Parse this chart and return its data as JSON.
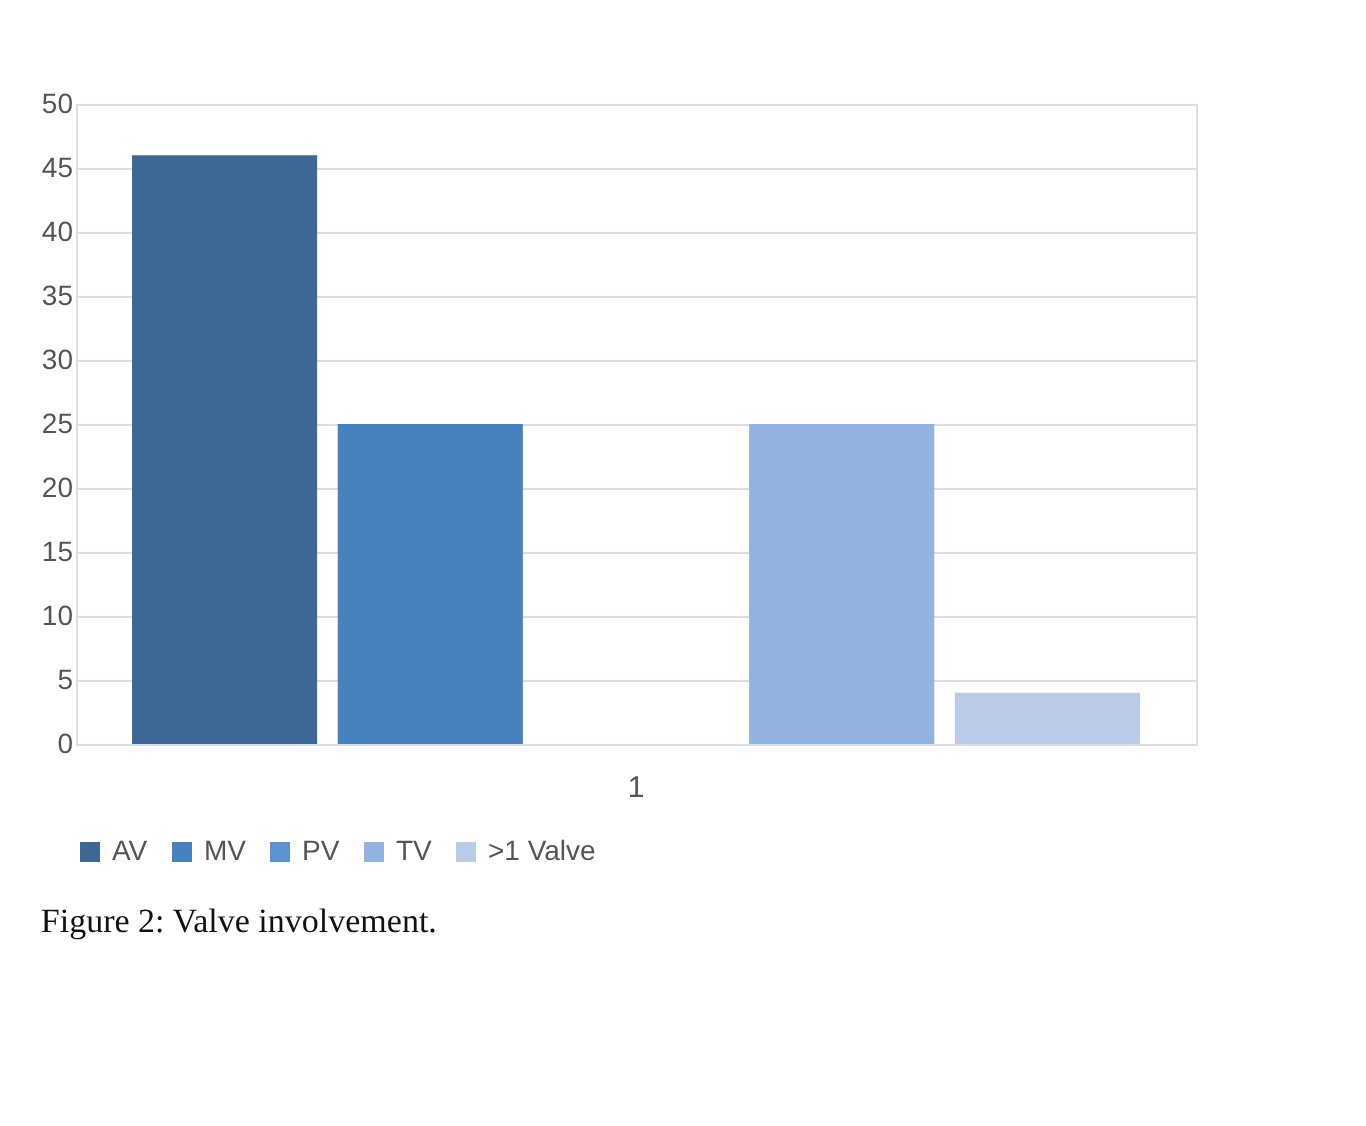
{
  "chart_data": {
    "type": "bar",
    "categories": [
      "1"
    ],
    "series": [
      {
        "name": "AV",
        "color": "#3b6894",
        "values": [
          46
        ]
      },
      {
        "name": "MV",
        "color": "#4683be",
        "values": [
          25
        ]
      },
      {
        "name": "PV",
        "color": "#5b93d3",
        "values": [
          0
        ]
      },
      {
        "name": "TV",
        "color": "#92b3df",
        "values": [
          25
        ]
      },
      {
        "name": ">1 Valve",
        "color": "#b9cbe6",
        "values": [
          4
        ]
      }
    ],
    "ylim": [
      0,
      50
    ],
    "yticks": [
      0,
      5,
      10,
      15,
      20,
      25,
      30,
      35,
      40,
      45,
      50
    ],
    "grid": "y",
    "legend": "bottom",
    "annotations": [
      "Figure 2: Valve involvement."
    ]
  }
}
